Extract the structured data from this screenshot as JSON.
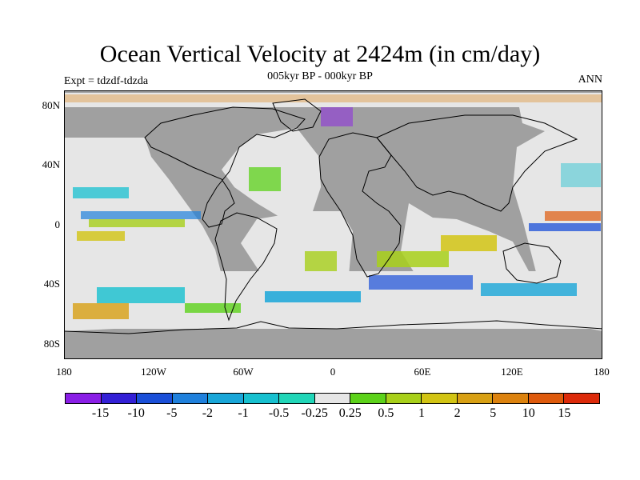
{
  "title": "Ocean Vertical Velocity at 2424m (in cm/day)",
  "subtitle": "005kyr BP - 000kyr BP",
  "experiment": "Expt = tdzdf-tdzda",
  "season": "ANN",
  "land_color": "#a0a0a0",
  "near_zero_color": "#e6e6e6",
  "lat_labels": [
    "80N",
    "40N",
    "0",
    "40S",
    "80S"
  ],
  "lon_labels": [
    "180",
    "120W",
    "60W",
    "0",
    "60E",
    "120E",
    "180"
  ],
  "colorbar": {
    "colors": [
      "#8a1ee6",
      "#3320d6",
      "#1a4fd8",
      "#1f80dc",
      "#19a6d8",
      "#17c0cf",
      "#21d6b8",
      "#e6e6e6",
      "#5cd21a",
      "#a8d01a",
      "#d2c414",
      "#d8a014",
      "#dc820e",
      "#de5a0c",
      "#dc2a0a"
    ],
    "labels": [
      "-15",
      "-10",
      "-5",
      "-2",
      "-1",
      "-0.5",
      "-0.25",
      "0.25",
      "0.5",
      "1",
      "2",
      "5",
      "10",
      "15"
    ]
  }
}
